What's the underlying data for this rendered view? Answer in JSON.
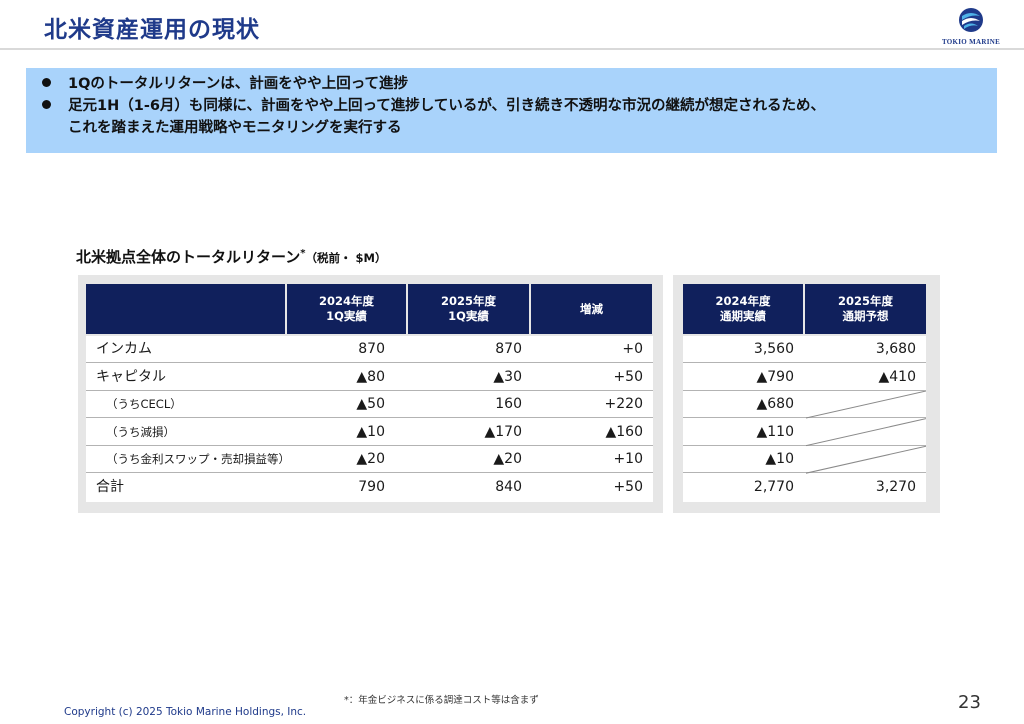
{
  "title": "北米資産運用の現状",
  "logo_text": "TOKIO MARINE",
  "summary": {
    "bullet1": "1Qのトータルリターンは、計画をやや上回って進捗",
    "bullet2_line1": "足元1H（1-6月）も同様に、計画をやや上回って進捗しているが、引き続き不透明な市況の継続が想定されるため、",
    "bullet2_line2": "これを踏まえた運用戦略やモニタリングを実行する"
  },
  "section": {
    "title": "北米拠点全体のトータルリターン",
    "sup": "*",
    "unit": "（税前・ $M）"
  },
  "table_left": {
    "headers": [
      {
        "line1": "2024年度",
        "line2": "1Q実績"
      },
      {
        "line1": "2025年度",
        "line2": "1Q実績"
      },
      {
        "line1": "増減",
        "line2": ""
      }
    ],
    "rows": [
      {
        "label": "インカム",
        "values": [
          "870",
          "870",
          "+0"
        ],
        "sub": false
      },
      {
        "label": "キャピタル",
        "values": [
          "▲80",
          "▲30",
          "+50"
        ],
        "sub": false
      },
      {
        "label": "（うちCECL）",
        "values": [
          "▲50",
          "160",
          "+220"
        ],
        "sub": true
      },
      {
        "label": "（うち減損）",
        "values": [
          "▲10",
          "▲170",
          "▲160"
        ],
        "sub": true
      },
      {
        "label": "（うち金利スワップ・売却損益等）",
        "values": [
          "▲20",
          "▲20",
          "+10"
        ],
        "sub": true
      },
      {
        "label": "合計",
        "values": [
          "790",
          "840",
          "+50"
        ],
        "sub": false
      }
    ]
  },
  "table_right": {
    "headers": [
      {
        "line1": "2024年度",
        "line2": "通期実績"
      },
      {
        "line1": "2025年度",
        "line2": "通期予想"
      }
    ],
    "rows": [
      {
        "values": [
          "3,560",
          "3,680"
        ]
      },
      {
        "values": [
          "▲790",
          "▲410"
        ]
      },
      {
        "values": [
          "▲680",
          ""
        ]
      },
      {
        "values": [
          "▲110",
          ""
        ]
      },
      {
        "values": [
          "▲10",
          ""
        ]
      },
      {
        "values": [
          "2,770",
          "3,270"
        ]
      }
    ]
  },
  "footnote": "*：年金ビジネスに係る調達コスト等は含まず",
  "copyright": "Copyright (c) 2025 Tokio Marine Holdings, Inc.",
  "page_number": "23",
  "colors": {
    "title": "#1f3a8a",
    "summary_bg": "#a9d3fb",
    "header_bg": "#10205c",
    "panel_bg": "#e6e6e6"
  }
}
